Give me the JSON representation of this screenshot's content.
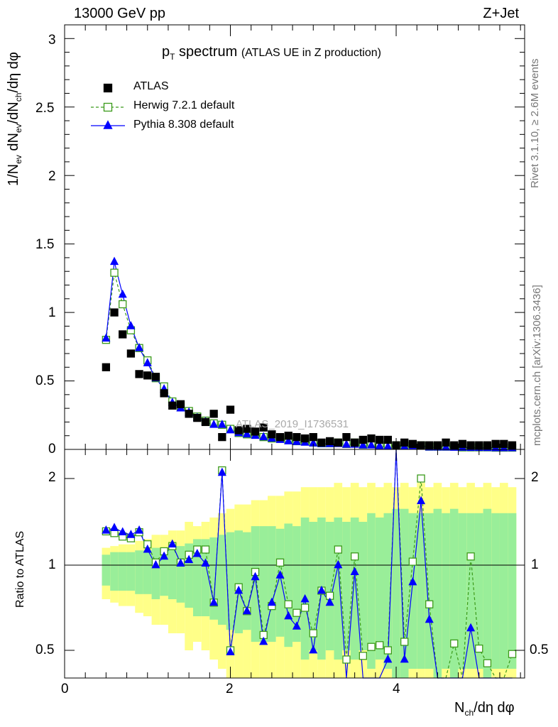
{
  "header": {
    "left": "13000 GeV pp",
    "right": "Z+Jet"
  },
  "title": {
    "main": "p",
    "main_sub": "T",
    "main_rest": " spectrum",
    "paren": "(ATLAS UE in Z production)"
  },
  "watermark": "ATLAS_2019_I1736531",
  "side_labels": {
    "rivet": "Rivet 3.1.10, ≥ 2.6M events",
    "mcplots": "mcplots.cern.ch [arXiv:1306.3436]"
  },
  "axis": {
    "ylabel_main": "1/N_ev dN_ev/dN_ch/dη dφ",
    "ylabel_ratio": "Ratio to ATLAS",
    "xlabel": "N_ch/dη dφ",
    "main_yticks": [
      "0",
      "0.5",
      "1",
      "1.5",
      "2",
      "2.5",
      "3"
    ],
    "ratio_yticks": [
      "0.5",
      "1",
      "2"
    ],
    "xticks": [
      "0",
      "2",
      "4"
    ]
  },
  "legend": [
    {
      "label": "ATLAS",
      "marker": "filled-square",
      "color": "#000000"
    },
    {
      "label": "Herwig 7.2.1 default",
      "marker": "open-square-dashed",
      "color": "#3a9a1a"
    },
    {
      "label": "Pythia 8.308 default",
      "marker": "filled-triangle",
      "color": "#0000ff"
    }
  ],
  "colors": {
    "atlas": "#000000",
    "herwig": "#3a9a1a",
    "pythia": "#0000ff",
    "band_outer": "#ffff88",
    "band_inner": "#99ee99"
  },
  "chart_data": {
    "type": "scatter",
    "title": "p_T spectrum (ATLAS UE in Z production)",
    "xlabel": "N_ch/dη dφ",
    "ylabel": "1/N_ev dN_ev/dN_ch/dη dφ",
    "xlim": [
      0,
      5.55
    ],
    "ylim": [
      0,
      3.1
    ],
    "ratio_ylim": [
      0.35,
      2.25
    ],
    "x": [
      0.5,
      0.6,
      0.7,
      0.8,
      0.9,
      1.0,
      1.1,
      1.2,
      1.3,
      1.4,
      1.5,
      1.6,
      1.7,
      1.8,
      1.9,
      2.0,
      2.1,
      2.2,
      2.3,
      2.4,
      2.5,
      2.6,
      2.7,
      2.8,
      2.9,
      3.0,
      3.1,
      3.2,
      3.3,
      3.4,
      3.5,
      3.6,
      3.7,
      3.8,
      3.9,
      4.0,
      4.1,
      4.2,
      4.3,
      4.4,
      4.5,
      4.6,
      4.7,
      4.8,
      4.9,
      5.0,
      5.1,
      5.2,
      5.3,
      5.4
    ],
    "series": [
      {
        "name": "ATLAS",
        "values": [
          0.6,
          1.0,
          0.84,
          0.7,
          0.55,
          0.54,
          0.53,
          0.41,
          0.32,
          0.33,
          0.26,
          0.23,
          0.2,
          0.26,
          0.09,
          0.29,
          0.14,
          0.15,
          0.13,
          0.16,
          0.11,
          0.09,
          0.1,
          0.09,
          0.08,
          0.09,
          0.05,
          0.06,
          0.05,
          0.09,
          0.05,
          0.07,
          0.08,
          0.07,
          0.07,
          0.03,
          0.05,
          0.04,
          0.03,
          0.03,
          0.03,
          0.05,
          0.03,
          0.04,
          0.03,
          0.03,
          0.03,
          0.04,
          0.04,
          0.03
        ]
      },
      {
        "name": "Herwig 7.2.1 default",
        "values": [
          0.8,
          1.29,
          1.06,
          0.87,
          0.74,
          0.65,
          0.52,
          0.46,
          0.35,
          0.31,
          0.28,
          0.24,
          0.21,
          0.19,
          0.18,
          0.15,
          0.12,
          0.11,
          0.11,
          0.09,
          0.08,
          0.08,
          0.07,
          0.06,
          0.06,
          0.05,
          0.045,
          0.045,
          0.05,
          0.04,
          0.05,
          0.035,
          0.04,
          0.035,
          0.03,
          0.03,
          0.028,
          0.028,
          0.03,
          0.02,
          0.02,
          0.02,
          0.02,
          0.015,
          0.015,
          0.015,
          0.015,
          0.013,
          0.013,
          0.013
        ]
      },
      {
        "name": "Pythia 8.308 default",
        "values": [
          0.81,
          1.37,
          1.13,
          0.9,
          0.74,
          0.63,
          0.52,
          0.44,
          0.34,
          0.3,
          0.27,
          0.23,
          0.2,
          0.18,
          0.18,
          0.14,
          0.12,
          0.11,
          0.1,
          0.09,
          0.08,
          0.07,
          0.06,
          0.055,
          0.05,
          0.045,
          0.04,
          0.04,
          0.04,
          0.035,
          0.035,
          0.03,
          0.03,
          0.025,
          0.02,
          0.02,
          0.02,
          0.02,
          0.02,
          0.015,
          0.015,
          0.015,
          0.013,
          0.013,
          0.012,
          0.012,
          0.011,
          0.01,
          0.01,
          0.01
        ]
      }
    ],
    "ratio": {
      "herwig": [
        1.39,
        1.37,
        1.33,
        1.31,
        1.38,
        1.24,
        1.03,
        1.16,
        1.22,
        1.03,
        1.12,
        1.18,
        1.18,
        0.78,
        2.07,
        0.5,
        0.87,
        0.73,
        0.96,
        0.59,
        0.76,
        1.03,
        0.77,
        0.72,
        0.75,
        0.6,
        0.85,
        0.82,
        1.18,
        0.45,
        1.1,
        0.47,
        0.52,
        0.53,
        0.5,
        2.45,
        0.55,
        1.04,
        2.0,
        0.77,
        0.3,
        0.3,
        0.54,
        0.3,
        1.1,
        0.51,
        0.43,
        0.3,
        0.3,
        0.48
      ],
      "pythia": [
        1.4,
        1.43,
        1.38,
        1.35,
        1.4,
        1.18,
        1.0,
        1.1,
        1.24,
        1.02,
        1.06,
        1.13,
        1.02,
        0.78,
        2.05,
        0.49,
        0.85,
        0.73,
        0.93,
        0.55,
        0.78,
        0.94,
        0.7,
        0.64,
        0.8,
        0.5,
        0.85,
        0.78,
        1.0,
        0.3,
        0.96,
        0.3,
        0.3,
        0.3,
        0.45,
        2.4,
        0.45,
        0.9,
        1.74,
        0.68,
        0.3,
        0.3,
        0.3,
        0.3,
        0.63,
        0.3,
        0.3,
        0.3,
        0.3,
        0.3
      ],
      "band_inner": [
        0.12,
        0.15,
        0.15,
        0.15,
        0.17,
        0.17,
        0.2,
        0.18,
        0.2,
        0.22,
        0.25,
        0.3,
        0.3,
        0.32,
        0.35,
        0.38,
        0.4,
        0.38,
        0.45,
        0.45,
        0.45,
        0.42,
        0.48,
        0.45,
        0.55,
        0.5,
        0.55,
        0.5,
        0.55,
        0.5,
        0.55,
        0.5,
        0.6,
        0.55,
        0.6,
        0.65,
        0.65,
        0.6,
        0.6,
        0.6,
        0.65,
        0.6,
        0.65,
        0.6,
        0.6,
        0.6,
        0.65,
        0.6,
        0.6,
        0.6
      ],
      "band_outer": [
        0.2,
        0.22,
        0.24,
        0.24,
        0.28,
        0.3,
        0.35,
        0.35,
        0.4,
        0.4,
        0.5,
        0.45,
        0.5,
        0.55,
        0.6,
        0.65,
        0.7,
        0.7,
        0.75,
        0.75,
        0.8,
        0.8,
        0.85,
        0.85,
        0.9,
        0.9,
        0.9,
        0.9,
        0.95,
        0.9,
        0.95,
        0.9,
        0.95,
        0.9,
        0.95,
        0.9,
        0.95,
        0.9,
        0.95,
        0.9,
        0.95,
        0.9,
        0.95,
        0.9,
        0.95,
        0.9,
        0.95,
        0.9,
        0.95,
        0.9
      ]
    }
  }
}
